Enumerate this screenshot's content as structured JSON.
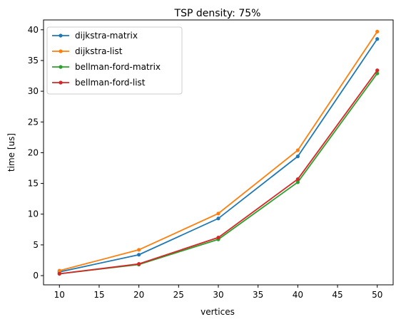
{
  "chart_data": {
    "type": "line",
    "title": "TSP density: 75%",
    "xlabel": "vertices",
    "ylabel": "time [us]",
    "x": [
      10,
      20,
      30,
      40,
      50
    ],
    "xlim": [
      8,
      52
    ],
    "ylim": [
      -1.5,
      41.6
    ],
    "xticks": [
      10,
      15,
      20,
      25,
      30,
      35,
      40,
      45,
      50
    ],
    "yticks": [
      0,
      5,
      10,
      15,
      20,
      25,
      30,
      35,
      40
    ],
    "grid": false,
    "legend_position": "top-left",
    "series": [
      {
        "name": "dijkstra-matrix",
        "color": "#1f77b4",
        "values": [
          0.6,
          3.4,
          9.3,
          19.4,
          38.5
        ]
      },
      {
        "name": "dijkstra-list",
        "color": "#ff7f0e",
        "values": [
          0.8,
          4.2,
          10.1,
          20.4,
          39.7
        ]
      },
      {
        "name": "bellman-ford-matrix",
        "color": "#2ca02c",
        "values": [
          0.3,
          1.8,
          5.9,
          15.2,
          32.9
        ]
      },
      {
        "name": "bellman-ford-list",
        "color": "#d62728",
        "values": [
          0.3,
          1.9,
          6.2,
          15.7,
          33.4
        ]
      }
    ]
  }
}
